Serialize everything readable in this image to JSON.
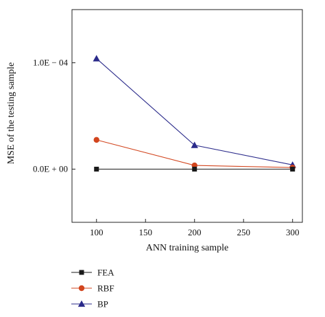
{
  "chart_data": {
    "type": "line",
    "title": "",
    "xlabel": "ANN training sample",
    "ylabel": "MSE of the testing sample",
    "x": [
      100,
      200,
      300
    ],
    "x_ticks": [
      "100",
      "150",
      "200",
      "250",
      "300"
    ],
    "x_tick_values": [
      100,
      150,
      200,
      250,
      300
    ],
    "xlim": [
      75,
      310
    ],
    "y_ticks": [
      "0.0E + 00",
      "1.0E − 04"
    ],
    "y_tick_values": [
      0,
      0.0001
    ],
    "ylim": [
      -5e-05,
      0.00015
    ],
    "grid": false,
    "legend_position": "bottom-left, below plot",
    "series": [
      {
        "name": "FEA",
        "marker": "square",
        "color": "#1a1a1a",
        "values": [
          0,
          0,
          0
        ]
      },
      {
        "name": "RBF",
        "marker": "circle",
        "color": "#d2451e",
        "values": [
          2.75e-05,
          3.5e-06,
          1.5e-06
        ]
      },
      {
        "name": "BP",
        "marker": "triangle",
        "color": "#2a2a8a",
        "values": [
          0.000104,
          2.25e-05,
          4e-06
        ]
      }
    ]
  }
}
